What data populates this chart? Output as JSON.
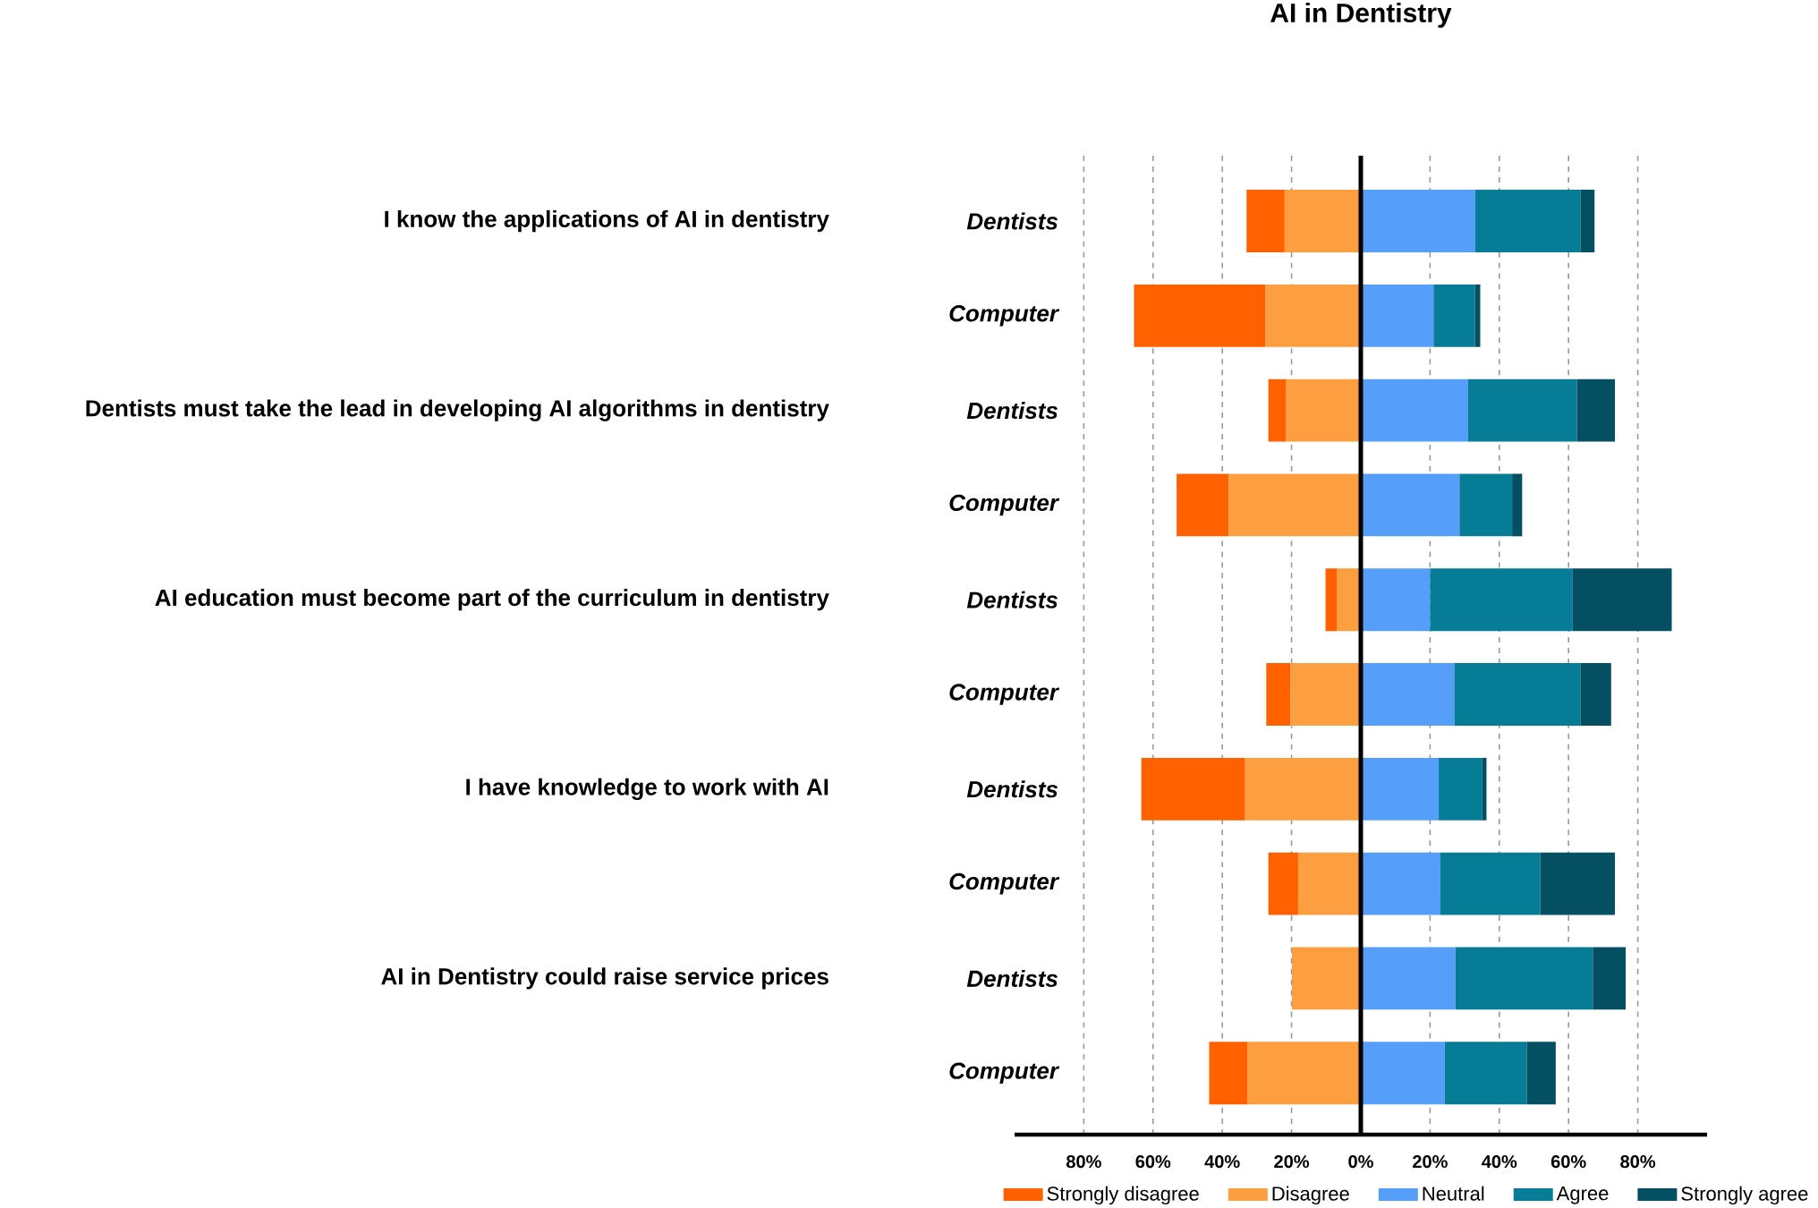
{
  "chart_data": {
    "type": "bar",
    "title": "AI in Dentistry",
    "orientation": "horizontal",
    "stacked": true,
    "categories": [
      "Dentists",
      "Computer",
      "Dentists",
      "Computer",
      "Dentists",
      "Computer",
      "Dentists",
      "Computer",
      "Dentists",
      "Computer"
    ],
    "annotations": [
      "I know the applications of AI in dentistry",
      "Dentists must take the lead in developing AI algorithms in dentistry",
      "AI education must become part of the curriculum in dentistry",
      "I have knowledge to work with AI",
      "AI in Dentistry could raise service prices"
    ],
    "series": [
      {
        "name": "Strongly disagree",
        "color": "#ff6000",
        "values": [
          -11,
          -38,
          -5,
          -15,
          -3.4,
          -7,
          -30,
          -8.6,
          0,
          -11
        ]
      },
      {
        "name": "Disagree",
        "color": "#fd9e41",
        "values": [
          -22,
          -27.5,
          -21.7,
          -38.2,
          -6.8,
          -20.3,
          -33.4,
          -18.1,
          -19.9,
          -32.8
        ]
      },
      {
        "name": "Neutral",
        "color": "#559ffb",
        "values": [
          33,
          21,
          31,
          28.5,
          20,
          27,
          22.5,
          23,
          27.3,
          24.2
        ]
      },
      {
        "name": "Agree",
        "color": "#077c97",
        "values": [
          30.5,
          12,
          31.4,
          15.2,
          41.2,
          36.4,
          12.6,
          28.8,
          39.7,
          23.8
        ]
      },
      {
        "name": "Strongly agree",
        "color": "#054f63",
        "values": [
          4,
          1.5,
          11,
          2.9,
          28.6,
          8.9,
          1.2,
          21.6,
          9.5,
          8.3
        ]
      }
    ],
    "xlim": [
      -100,
      100
    ],
    "xticks": [
      {
        "value": -80,
        "label": "80%"
      },
      {
        "value": -60,
        "label": "60%"
      },
      {
        "value": -40,
        "label": "40%"
      },
      {
        "value": -20,
        "label": "20%"
      },
      {
        "value": 0,
        "label": "0%"
      },
      {
        "value": 20,
        "label": "20%"
      },
      {
        "value": 40,
        "label": "40%"
      },
      {
        "value": 60,
        "label": "60%"
      },
      {
        "value": 80,
        "label": "80%"
      }
    ],
    "grid": "x",
    "legend": "bottom"
  }
}
